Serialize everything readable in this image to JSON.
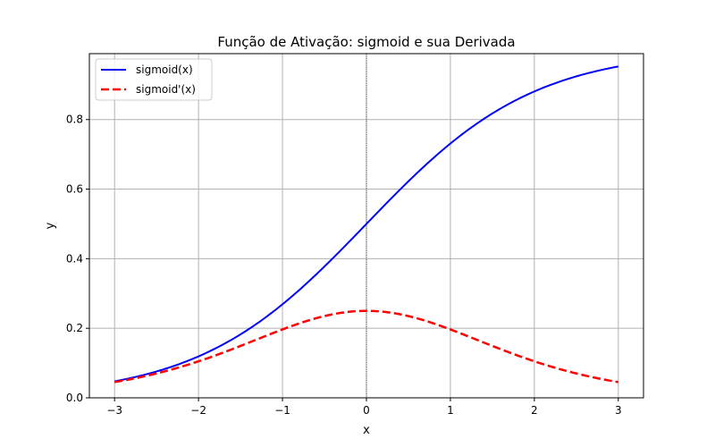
{
  "chart_data": {
    "type": "line",
    "title": "Função de Ativação: sigmoid e sua Derivada",
    "xlabel": "x",
    "ylabel": "y",
    "xlim": [
      -3.3,
      3.3
    ],
    "ylim": [
      0.0,
      0.9895
    ],
    "xticks": [
      -3,
      -2,
      -1,
      0,
      1,
      2,
      3
    ],
    "yticks": [
      0.0,
      0.2,
      0.4,
      0.6,
      0.8
    ],
    "xtick_labels": [
      "−3",
      "−2",
      "−1",
      "0",
      "1",
      "2",
      "3"
    ],
    "ytick_labels": [
      "0.0",
      "0.2",
      "0.4",
      "0.6",
      "0.8"
    ],
    "grid": true,
    "vline_x": 0,
    "legend_position": "top-left",
    "x": [
      -3.0,
      -2.5,
      -2.0,
      -1.5,
      -1.0,
      -0.5,
      0.0,
      0.5,
      1.0,
      1.5,
      2.0,
      2.5,
      3.0
    ],
    "series": [
      {
        "name": "sigmoid(x)",
        "color": "#0000ff",
        "style": "solid",
        "values": [
          0.0474,
          0.0759,
          0.1192,
          0.1824,
          0.2689,
          0.3775,
          0.5,
          0.6225,
          0.7311,
          0.8176,
          0.8808,
          0.9241,
          0.9526
        ]
      },
      {
        "name": "sigmoid'(x)",
        "color": "#ff0000",
        "style": "dashed",
        "values": [
          0.0452,
          0.0701,
          0.105,
          0.1491,
          0.1966,
          0.235,
          0.25,
          0.235,
          0.1966,
          0.1491,
          0.105,
          0.0701,
          0.0452
        ]
      }
    ]
  }
}
